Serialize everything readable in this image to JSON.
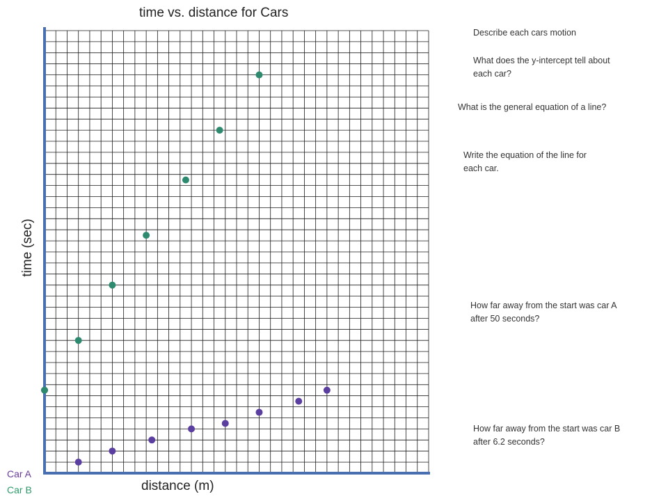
{
  "questions": {
    "q1": "Describe each cars motion",
    "q2": "What does the y-intercept tell about each car?",
    "q3": "What is the general equation of a line?",
    "q4": "Write the equation of the line for each car.",
    "q5": "How far away from the start was car A after 50 seconds?",
    "q6": "How far away from the start was car B after 6.2 seconds?"
  },
  "colors": {
    "axis": "#4a6fb0",
    "grid": "#1a1a1a",
    "series_a": "#5b3fa0",
    "series_b": "#2e8a6e",
    "legend_a": "#6a3d9a",
    "legend_b": "#2e9a6a"
  },
  "chart_data": {
    "type": "scatter",
    "title": "time vs. distance for Cars",
    "xlabel": "distance (m)",
    "ylabel": "time (sec)",
    "grid": true,
    "grid_columns": 34,
    "grid_rows": 40,
    "xlim": [
      0,
      34
    ],
    "ylim": [
      0,
      40
    ],
    "legend_position": "bottom-left",
    "series": [
      {
        "name": "Car A",
        "color": "#5b3fa0",
        "x": [
          0,
          3,
          6,
          9.5,
          13,
          16,
          19,
          22.5,
          25
        ],
        "y": [
          7.5,
          1,
          2,
          3,
          4,
          4.5,
          5.5,
          6.5,
          7.5
        ]
      },
      {
        "name": "Car B",
        "color": "#2e8a6e",
        "x": [
          0,
          3,
          6,
          9,
          12.5,
          15.5,
          19
        ],
        "y": [
          7.5,
          12,
          17,
          21.5,
          26.5,
          31,
          36
        ]
      }
    ]
  }
}
